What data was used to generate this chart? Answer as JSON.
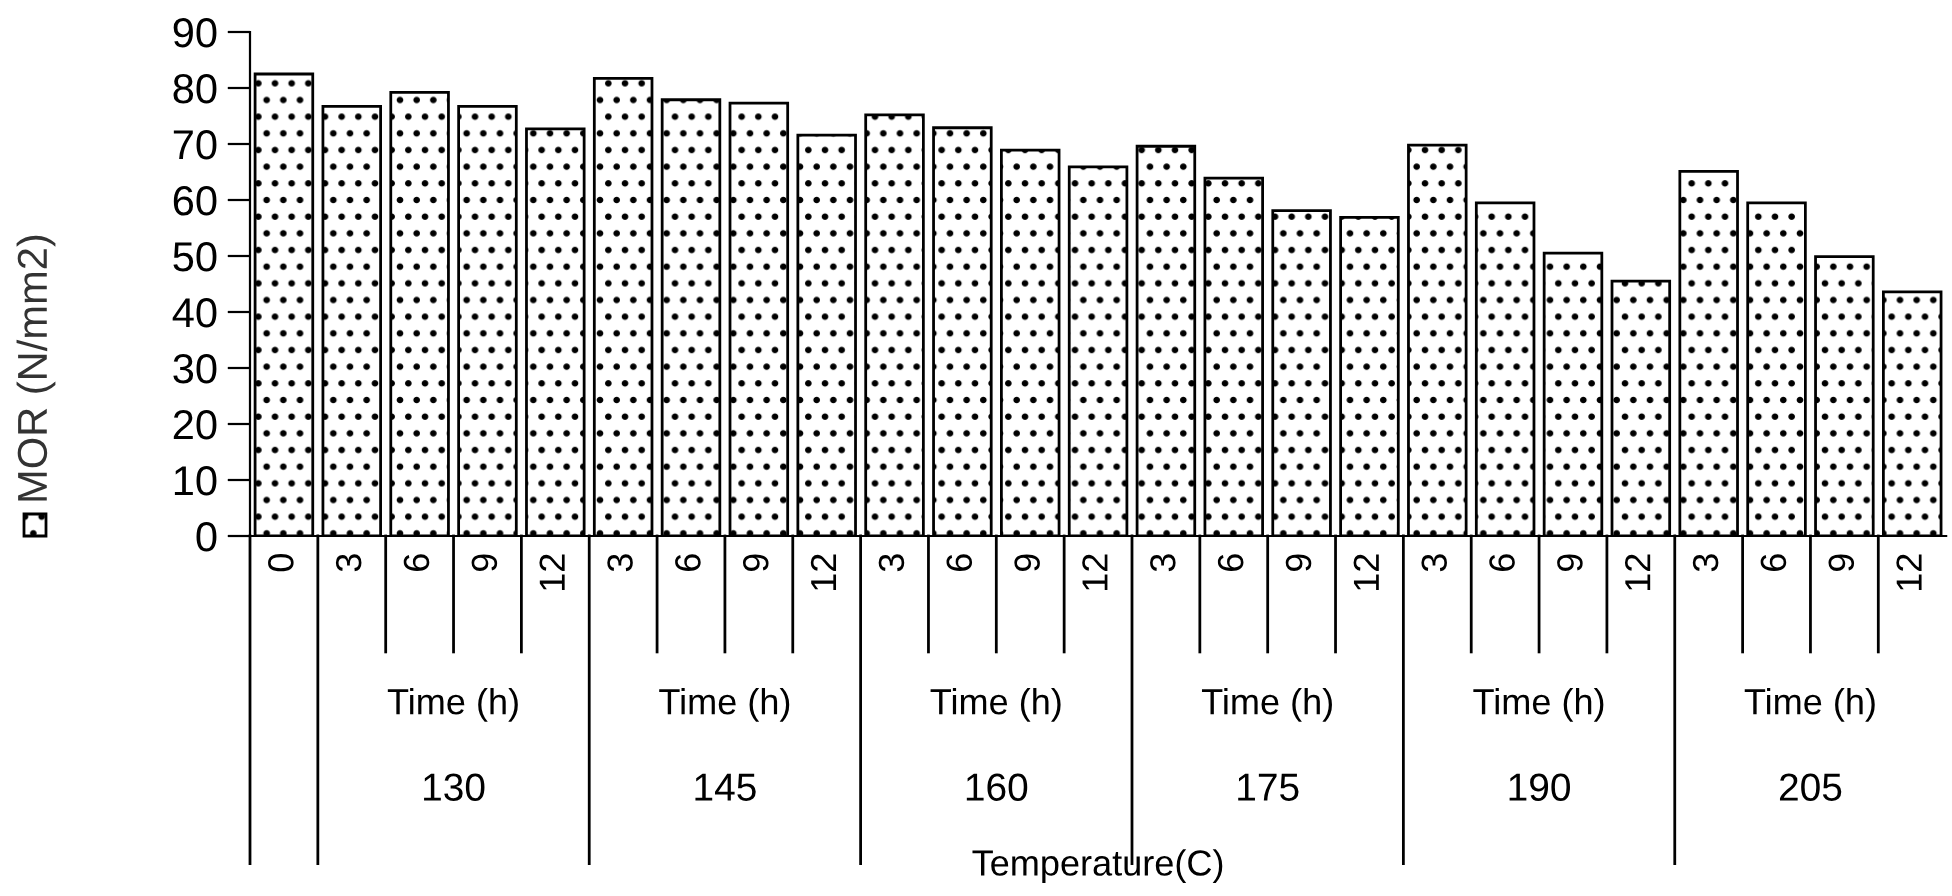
{
  "chart_data": {
    "type": "bar",
    "categories": [
      "0",
      "3",
      "6",
      "9",
      "12",
      "3",
      "6",
      "9",
      "12",
      "3",
      "6",
      "9",
      "12",
      "3",
      "6",
      "9",
      "12",
      "3",
      "6",
      "9",
      "12",
      "3",
      "6",
      "9",
      "12"
    ],
    "series": [
      {
        "name": "MOR (N/mm2)",
        "color": "#000000",
        "values": [
          82.5,
          76.7,
          79.2,
          76.7,
          72.7,
          81.7,
          77.9,
          77.3,
          71.6,
          75.2,
          72.9,
          68.9,
          65.9,
          69.6,
          63.9,
          58.1,
          56.9,
          69.8,
          59.5,
          50.5,
          45.5,
          65.1,
          59.5,
          49.9,
          43.6
        ]
      }
    ],
    "annotations": [
      "Time (h)",
      "Time (h)",
      "Time (h)",
      "Time (h)",
      "Time (h)",
      "Time (h)",
      "130",
      "145",
      "160",
      "175",
      "190",
      "205",
      "Temperature(C)"
    ],
    "ylim": [
      0,
      90
    ],
    "yticks": [
      0,
      10,
      20,
      30,
      40,
      50,
      60,
      70,
      80,
      90
    ],
    "grid": false,
    "legend": "left"
  }
}
